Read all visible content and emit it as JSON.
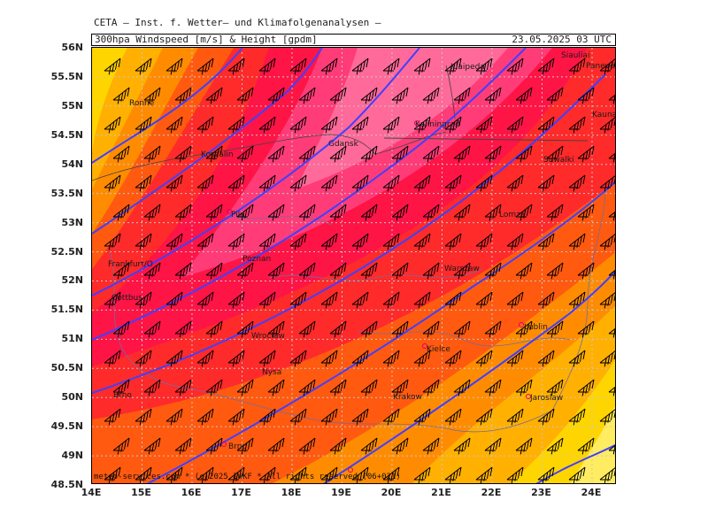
{
  "header": {
    "title": "CETA — Inst. f. Wetter— und Klimafolgenanalysen —",
    "subtitle": "300hpa Windspeed [m/s] & Height [gpdm]",
    "valid_time": "23.05.2025 03 UTC"
  },
  "footer": {
    "copyright": "meteo-services.com * (c)2025 IWKF * All rights reserved (06+021)"
  },
  "axes": {
    "lat_labels": [
      "56N",
      "55.5N",
      "55N",
      "54.5N",
      "54N",
      "53.5N",
      "53N",
      "52.5N",
      "52N",
      "51.5N",
      "51N",
      "50.5N",
      "50N",
      "49.5N",
      "49N",
      "48.5N"
    ],
    "lon_labels": [
      "14E",
      "15E",
      "16E",
      "17E",
      "18E",
      "19E",
      "20E",
      "21E",
      "22E",
      "23E",
      "24E"
    ]
  },
  "cities": [
    {
      "name": "Ronne"
    },
    {
      "name": "Koszalin"
    },
    {
      "name": "Gdansk"
    },
    {
      "name": "Kaliningrad"
    },
    {
      "name": "Klaipeda"
    },
    {
      "name": "Siauliai"
    },
    {
      "name": "Panevezys"
    },
    {
      "name": "Kaunas"
    },
    {
      "name": "Suwalki"
    },
    {
      "name": "Pila"
    },
    {
      "name": "Lomza"
    },
    {
      "name": "Frankfurt/O"
    },
    {
      "name": "Poznan"
    },
    {
      "name": "Warszaw"
    },
    {
      "name": "Cottbus"
    },
    {
      "name": "Lublin"
    },
    {
      "name": "Wroclaw"
    },
    {
      "name": "Kielce"
    },
    {
      "name": "Nysa"
    },
    {
      "name": "Brno"
    },
    {
      "name": "Krakow"
    },
    {
      "name": "Jaroslaw"
    }
  ],
  "colors": {
    "yellow": "#ffd500",
    "light_orange": "#ffb000",
    "orange": "#ff8c00",
    "deep_orange": "#ff5a10",
    "red": "#ff2a2a",
    "crimson": "#ff1446",
    "pink": "#ff3c78",
    "light_pink": "#ff6a9a",
    "contour_blue": "#4040ff",
    "border_gray": "#888888",
    "wind_barb": "#000000"
  }
}
